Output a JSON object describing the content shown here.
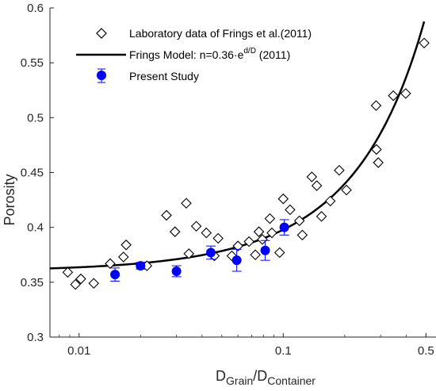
{
  "chart_data": {
    "type": "scatter",
    "title": "",
    "xlabel": {
      "main": "D",
      "sub1": "Grain",
      "sep": "/D",
      "sub2": "Container"
    },
    "ylabel": "Porosity",
    "xscale": "log",
    "xlim": [
      0.0072,
      0.56
    ],
    "ylim": [
      0.3,
      0.6
    ],
    "x_ticks": [
      0.01,
      0.1,
      0.5
    ],
    "x_tick_labels": [
      "0.01",
      "0.1",
      "0.5"
    ],
    "y_ticks": [
      0.3,
      0.35,
      0.4,
      0.45,
      0.5,
      0.55,
      0.6
    ],
    "y_tick_labels": [
      "0.3",
      "0.35",
      "0.4",
      "0.45",
      "0.5",
      "0.55",
      "0.6"
    ],
    "grid": false,
    "legend_position": "top-left",
    "legend": [
      {
        "key": "frings-lab",
        "text": "Laboratory data of Frings et al.(2011)"
      },
      {
        "key": "frings-model",
        "text_pre": "Frings Model: n=0.36·e",
        "text_sup": "d/D",
        "text_post": " (2011)"
      },
      {
        "key": "present",
        "text": "Present Study"
      }
    ],
    "series": [
      {
        "name": "Laboratory data of Frings et al.(2011)",
        "kind": "scatter",
        "marker": "diamond-open",
        "color": "#000000",
        "points": [
          [
            0.0088,
            0.359
          ],
          [
            0.0096,
            0.348
          ],
          [
            0.0102,
            0.353
          ],
          [
            0.0118,
            0.349
          ],
          [
            0.0142,
            0.367
          ],
          [
            0.0165,
            0.373
          ],
          [
            0.017,
            0.384
          ],
          [
            0.0215,
            0.365
          ],
          [
            0.0268,
            0.411
          ],
          [
            0.0295,
            0.396
          ],
          [
            0.0335,
            0.422
          ],
          [
            0.0345,
            0.376
          ],
          [
            0.0375,
            0.401
          ],
          [
            0.042,
            0.395
          ],
          [
            0.046,
            0.374
          ],
          [
            0.048,
            0.39
          ],
          [
            0.056,
            0.374
          ],
          [
            0.06,
            0.383
          ],
          [
            0.068,
            0.387
          ],
          [
            0.073,
            0.375
          ],
          [
            0.076,
            0.396
          ],
          [
            0.079,
            0.389
          ],
          [
            0.086,
            0.408
          ],
          [
            0.088,
            0.395
          ],
          [
            0.096,
            0.377
          ],
          [
            0.1,
            0.426
          ],
          [
            0.108,
            0.416
          ],
          [
            0.12,
            0.406
          ],
          [
            0.124,
            0.393
          ],
          [
            0.138,
            0.446
          ],
          [
            0.146,
            0.438
          ],
          [
            0.154,
            0.41
          ],
          [
            0.17,
            0.424
          ],
          [
            0.188,
            0.452
          ],
          [
            0.204,
            0.434
          ],
          [
            0.285,
            0.511
          ],
          [
            0.286,
            0.471
          ],
          [
            0.292,
            0.459
          ],
          [
            0.346,
            0.52
          ],
          [
            0.398,
            0.522
          ],
          [
            0.49,
            0.568
          ]
        ]
      },
      {
        "name": "Frings Model: n=0.36·e^(d/D) (2011)",
        "kind": "line",
        "coefficient": 0.36,
        "formula": "n=0.36·e^(d/D)",
        "x_range": [
          0.0072,
          0.49
        ],
        "color": "#000000"
      },
      {
        "name": "Present Study",
        "kind": "scatter-errorbar",
        "marker": "circle-filled",
        "color": "#0000ff",
        "points": [
          {
            "x": 0.015,
            "y": 0.357,
            "err": 0.006
          },
          {
            "x": 0.02,
            "y": 0.365,
            "err": 0.003
          },
          {
            "x": 0.03,
            "y": 0.36,
            "err": 0.005
          },
          {
            "x": 0.0442,
            "y": 0.377,
            "err": 0.006
          },
          {
            "x": 0.0592,
            "y": 0.37,
            "err": 0.01
          },
          {
            "x": 0.0816,
            "y": 0.379,
            "err": 0.009
          },
          {
            "x": 0.1012,
            "y": 0.4,
            "err": 0.007
          }
        ]
      }
    ]
  }
}
